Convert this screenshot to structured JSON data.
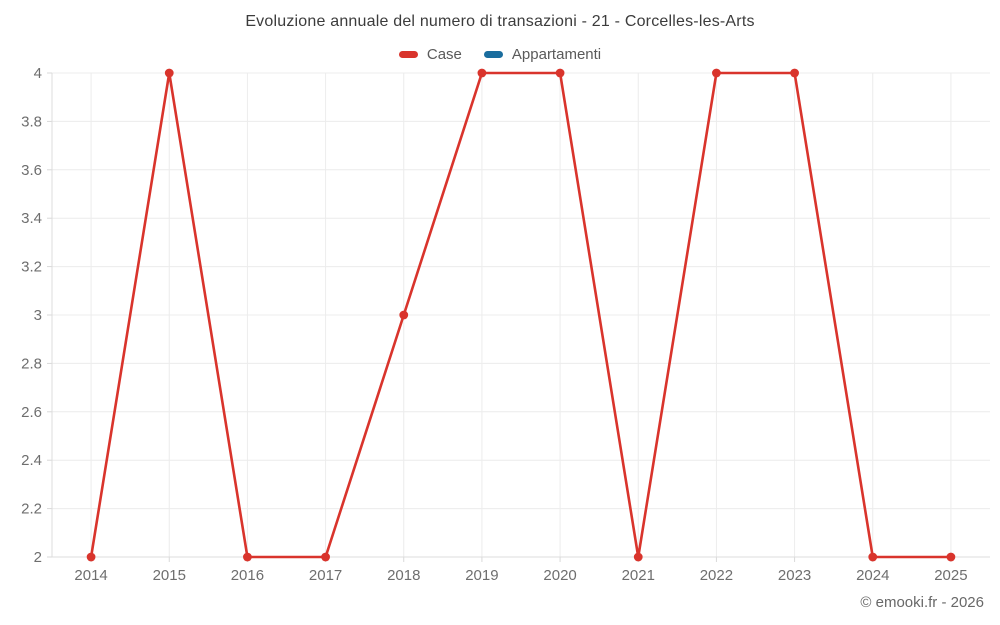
{
  "header": {
    "title": "Evoluzione annuale del numero di transazioni - 21 - Corcelles-les-Arts"
  },
  "footer": {
    "credit": "© emooki.fr - 2026"
  },
  "chart_data": {
    "type": "line",
    "title": "Evoluzione annuale del numero di transazioni - 21 - Corcelles-les-Arts",
    "categories": [
      "2014",
      "2015",
      "2016",
      "2017",
      "2018",
      "2019",
      "2020",
      "2021",
      "2022",
      "2023",
      "2024",
      "2025"
    ],
    "series": [
      {
        "name": "Case",
        "color": "#d9342c",
        "values": [
          2,
          4,
          2,
          2,
          3,
          4,
          4,
          2,
          4,
          4,
          2,
          2
        ]
      },
      {
        "name": "Appartamenti",
        "color": "#1a6d9e",
        "values": []
      }
    ],
    "xlabel": "",
    "ylabel": "",
    "ylim": [
      2,
      4
    ],
    "ytick_step": 0.2,
    "ytick_labels": [
      "2",
      "2.2",
      "2.4",
      "2.6",
      "2.8",
      "3",
      "3.2",
      "3.4",
      "3.6",
      "3.8",
      "4"
    ],
    "grid": true,
    "legend_position": "top"
  }
}
